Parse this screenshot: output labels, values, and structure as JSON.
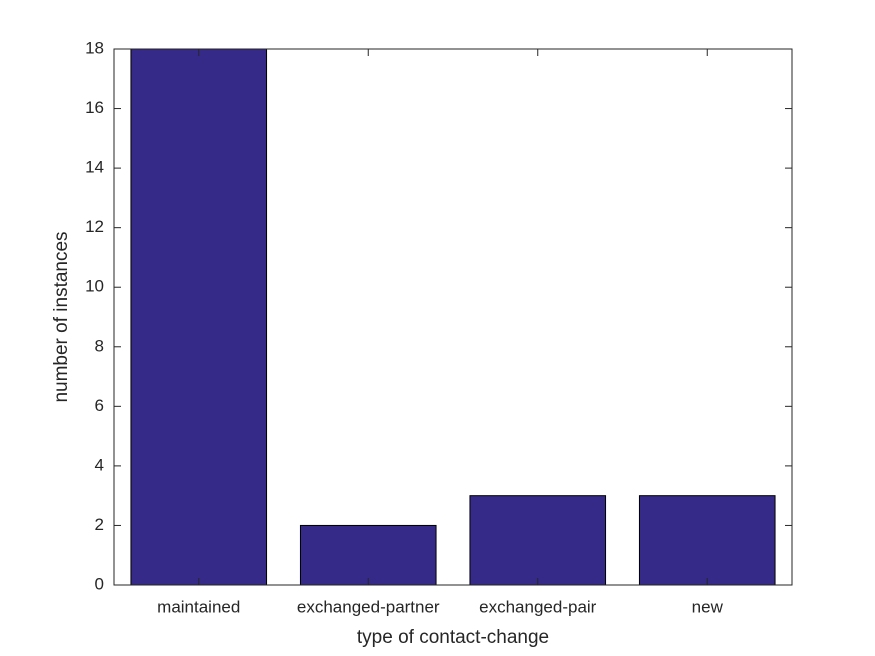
{
  "chart_data": {
    "type": "bar",
    "x_label": "type of contact-change",
    "y_label": "number of instances",
    "categories": [
      "maintained",
      "exchanged-partner",
      "exchanged-pair",
      "new"
    ],
    "values": [
      18,
      2,
      3,
      3
    ],
    "color": "#352a87",
    "ylim": [
      0,
      18
    ],
    "yticks": [
      0,
      2,
      4,
      6,
      8,
      10,
      12,
      14,
      16,
      18
    ],
    "grid": false
  }
}
